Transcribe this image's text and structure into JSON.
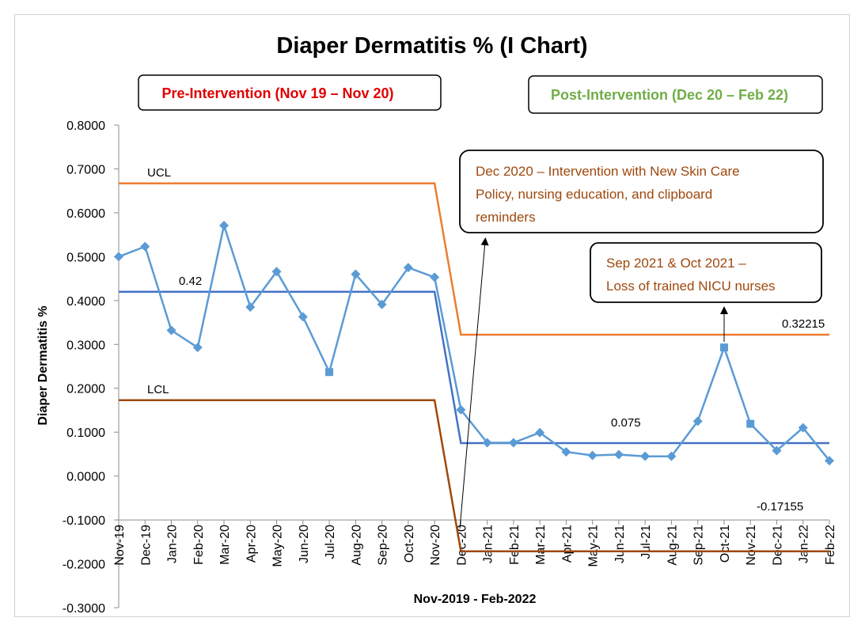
{
  "chart_data": {
    "type": "line",
    "title": "Diaper Dermatitis % (I Chart)",
    "xlabel": "Nov-2019 - Feb-2022",
    "ylabel": "Diaper Dermatitis %",
    "ylim": [
      -0.3,
      0.8
    ],
    "ytick_step": 0.1,
    "ytick_labels": [
      "0.8000",
      "0.7000",
      "0.6000",
      "0.5000",
      "0.4000",
      "0.3000",
      "0.2000",
      "0.1000",
      "0.0000",
      "-0.1000",
      "-0.2000",
      "-0.3000"
    ],
    "grid": false,
    "categories": [
      "Nov-19",
      "Dec-19",
      "Jan-20",
      "Feb-20",
      "Mar-20",
      "Apr-20",
      "May-20",
      "Jun-20",
      "Jul-20",
      "Aug-20",
      "Sep-20",
      "Oct-20",
      "Nov-20",
      "Dec-20",
      "Jan-21",
      "Feb-21",
      "Mar-21",
      "Apr-21",
      "May-21",
      "Jun-21",
      "Jul-21",
      "Aug-21",
      "Sep-21",
      "Oct-21",
      "Nov-21",
      "Dec-21",
      "Jan-22",
      "Feb-22"
    ],
    "series": [
      {
        "values": [
          0.5,
          0.523,
          0.332,
          0.293,
          0.571,
          0.385,
          0.466,
          0.363,
          0.237,
          0.46,
          0.391,
          0.475,
          0.453,
          0.151,
          0.076,
          0.076,
          0.099,
          0.055,
          0.047,
          0.049,
          0.045,
          0.045,
          0.125,
          0.293,
          0.119,
          0.058,
          0.11,
          0.035
        ],
        "color": "#5b9bd5",
        "square_marker_indices": [
          8,
          23,
          24
        ]
      }
    ],
    "center_line": {
      "label_pre": "0.42",
      "label_post": "0.075",
      "values": [
        0.42,
        0.42,
        0.42,
        0.42,
        0.42,
        0.42,
        0.42,
        0.42,
        0.42,
        0.42,
        0.42,
        0.42,
        0.42,
        0.075,
        0.075,
        0.075,
        0.075,
        0.075,
        0.075,
        0.075,
        0.075,
        0.075,
        0.075,
        0.075,
        0.075,
        0.075,
        0.075,
        0.075
      ],
      "color": "#4472c4"
    },
    "ucl": {
      "label": "UCL",
      "label_post": "0.32215",
      "values": [
        0.667,
        0.667,
        0.667,
        0.667,
        0.667,
        0.667,
        0.667,
        0.667,
        0.667,
        0.667,
        0.667,
        0.667,
        0.667,
        0.32215,
        0.32215,
        0.32215,
        0.32215,
        0.32215,
        0.32215,
        0.32215,
        0.32215,
        0.32215,
        0.32215,
        0.32215,
        0.32215,
        0.32215,
        0.32215,
        0.32215
      ],
      "color": "#ed7d31"
    },
    "lcl": {
      "label": "LCL",
      "label_post": "-0.17155",
      "values": [
        0.173,
        0.173,
        0.173,
        0.173,
        0.173,
        0.173,
        0.173,
        0.173,
        0.173,
        0.173,
        0.173,
        0.173,
        0.173,
        -0.17155,
        -0.17155,
        -0.17155,
        -0.17155,
        -0.17155,
        -0.17155,
        -0.17155,
        -0.17155,
        -0.17155,
        -0.17155,
        -0.17155,
        -0.17155,
        -0.17155,
        -0.17155,
        -0.17155
      ],
      "color": "#9e480e"
    },
    "annotations": {
      "pre_intervention": {
        "text": "Pre-Intervention (Nov 19 – Nov 20)",
        "color": "#e00000"
      },
      "post_intervention": {
        "text": "Post-Intervention (Dec 20 – Feb 22)",
        "color": "#70ad47"
      },
      "intervention_note": {
        "lines": [
          "Dec 2020 – Intervention with New Skin Care",
          "Policy, nursing education, and clipboard",
          "reminders"
        ],
        "color": "#9e480e",
        "points_to": "Dec-20"
      },
      "loss_note": {
        "lines": [
          "Sep 2021 & Oct 2021 –",
          "Loss of trained NICU nurses"
        ],
        "color": "#9e480e",
        "points_to": "Oct-21"
      }
    }
  }
}
